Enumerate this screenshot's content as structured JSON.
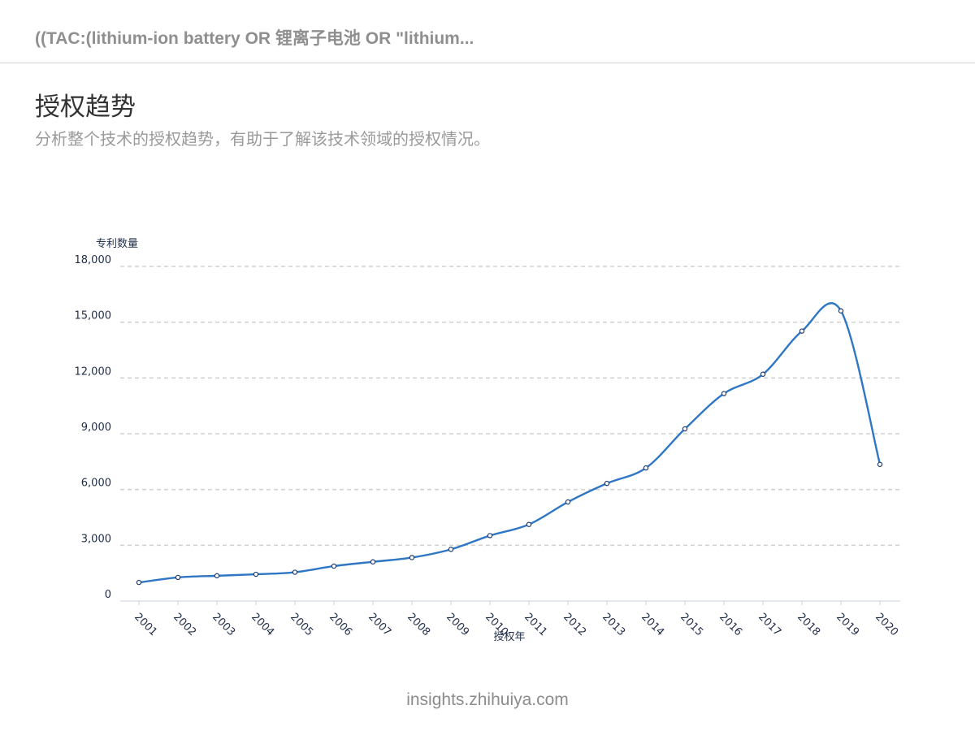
{
  "header": {
    "title": "((TAC:(lithium-ion battery OR 锂离子电池 OR \"lithium..."
  },
  "section": {
    "title": "授权趋势",
    "subtitle": "分析整个技术的授权趋势，有助于了解该技术领域的授权情况。"
  },
  "footer": {
    "text": "insights.zhihuiya.com"
  },
  "chart_data": {
    "type": "line",
    "title": "",
    "xlabel": "授权年",
    "ylabel": "专利数量",
    "x": [
      "2001",
      "2002",
      "2003",
      "2004",
      "2005",
      "2006",
      "2007",
      "2008",
      "2009",
      "2010",
      "2011",
      "2012",
      "2013",
      "2014",
      "2015",
      "2016",
      "2017",
      "2018",
      "2019",
      "2020"
    ],
    "y_tick_labels": [
      "0",
      "3,000",
      "6,000",
      "9,000",
      "12,000",
      "15,000",
      "18,000"
    ],
    "ylim": [
      0,
      18000
    ],
    "grid": true,
    "legend": "none",
    "series": [
      {
        "values": [
          1000,
          1270,
          1360,
          1440,
          1550,
          1880,
          2110,
          2340,
          2780,
          3520,
          4120,
          5330,
          6330,
          7160,
          9260,
          11160,
          12200,
          14520,
          15610,
          7350
        ],
        "color": "#2f77c4"
      }
    ]
  }
}
